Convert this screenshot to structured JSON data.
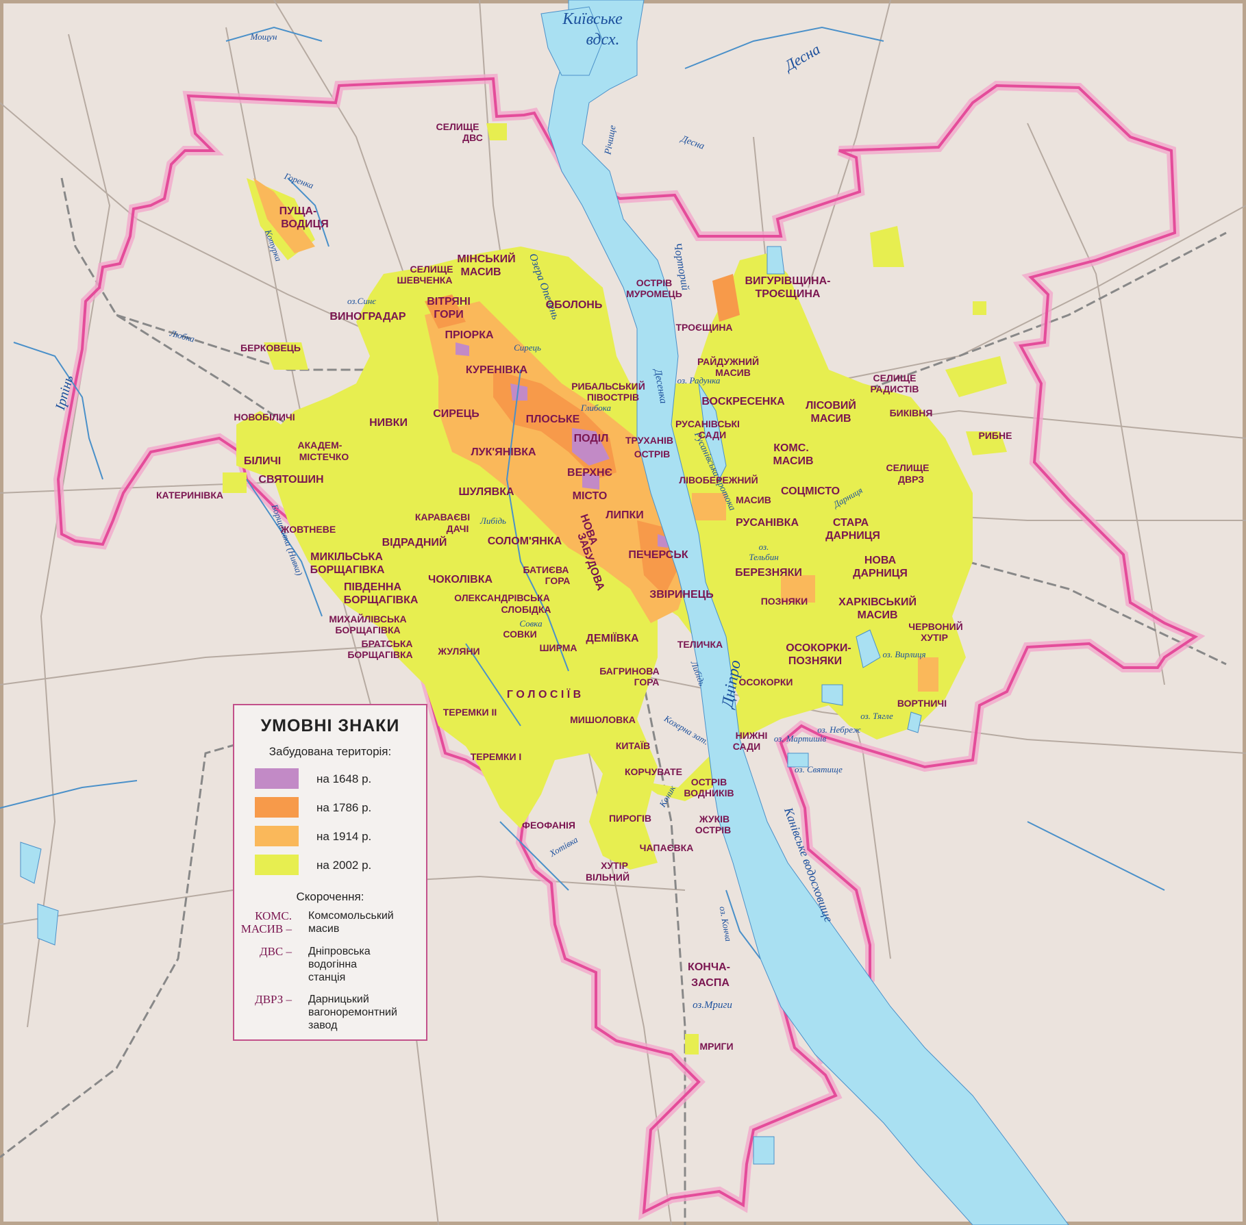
{
  "colors": {
    "background": "#ebe3dd",
    "water": "#a9e0f2",
    "river_line": "#4a90c9",
    "road": "#b6aaa1",
    "railway": "#7d7d7d",
    "boundary": "#e44c9a",
    "boundary_shadow": "#f2a8cc",
    "built_1648": "#c28ac6",
    "built_1786": "#f79a4a",
    "built_1914": "#fab85a",
    "built_2002": "#e7ee50",
    "district_text": "#7a1550",
    "water_text": "#1b4f9c"
  },
  "legend": {
    "title": "УМОВНІ ЗНАКИ",
    "subtitle": "Забудована територія:",
    "swatches": [
      {
        "label": "на 1648 р.",
        "color": "#c28ac6"
      },
      {
        "label": "на 1786 р.",
        "color": "#f79a4a"
      },
      {
        "label": "на 1914 р.",
        "color": "#fab85a"
      },
      {
        "label": "на 2002 р.",
        "color": "#e7ee50"
      }
    ],
    "abbr_title": "Скорочення:",
    "abbreviations": [
      {
        "key_line1": "КОМС.",
        "key_line2": "МАСИВ –",
        "line1": "Комсомольський",
        "line2": "масив",
        "line3": ""
      },
      {
        "key_line1": "ДВС –",
        "key_line2": "",
        "line1": "Дніпровська",
        "line2": "водогінна",
        "line3": "станція"
      },
      {
        "key_line1": "ДВРЗ –",
        "key_line2": "",
        "line1": "Дарницький",
        "line2": "вагоноремонтний",
        "line3": "завод"
      }
    ]
  },
  "water_labels": {
    "kyiv_reservoir_1": "Київське",
    "kyiv_reservoir_2": "вдсх.",
    "desna_upper": "Десна",
    "desna_mid": "Десна",
    "moshchun": "Мощун",
    "horenka": "Горенка",
    "koturka": "Котурка",
    "rychyshche": "Рiчище",
    "chortoryi": "Чорторий",
    "ozera_opechen": "Озера Опечень",
    "oz_syne": "оз.Синє",
    "lyubka": "Любка",
    "irpin": "Ірпінь",
    "syrets": "Сирець",
    "hlyboka": "Глибока",
    "desenka": "Десенка",
    "oz_radunka": "оз. Радунка",
    "rusanivska_protoka": "Русанівська протока",
    "darnytsia": "Дарниця",
    "borshchahivka_nyvka": "Борщагівка (Нивка)",
    "lybid_1": "Либідь",
    "lybid_2": "Либідь",
    "oz_telbyn_1": "оз.",
    "oz_telbyn_2": "Тельбин",
    "sovka": "Совка",
    "dnipro": "Дніпро",
    "oz_vyrlytsia": "оз. Вирлиця",
    "oz_tiahle": "оз. Тягле",
    "oz_nebrezh": "оз. Небреж",
    "oz_martyshiv": "оз. Мартишів",
    "oz_sviatyshche": "оз. Святище",
    "kozhukhivska_zat": "Козерна зат.",
    "konyk": "Коник",
    "khotivka": "Хотівка",
    "kanivske": "Канівське водосховище",
    "oz_koncha": "оз. Конча",
    "oz_myhy": "оз.Мриги"
  },
  "district_labels": {
    "selyshche_dvs_1": "СЕЛИЩЕ",
    "selyshche_dvs_2": "ДВС",
    "pushcha_1": "ПУЩА-",
    "pushcha_2": "ВОДИЦЯ",
    "selyshche_shevchenka_1": "СЕЛИЩЕ",
    "selyshche_shevchenka_2": "ШЕВЧЕНКА",
    "minskyi_1": "МІНСЬКИЙ",
    "minskyi_2": "МАСИВ",
    "obolon": "ОБОЛОНЬ",
    "ostriv_muromets_1": "ОСТРІВ",
    "ostriv_muromets_2": "МУРОМЕЦЬ",
    "vyhurivshchyna_1": "ВИГУРІВЩИНА-",
    "vyhurivshchyna_2": "ТРОЄЩИНА",
    "vynohradar": "ВИНОГРАДАР",
    "vitriani_1": "ВІТРЯНІ",
    "vitriani_2": "ГОРИ",
    "priorka": "ПРІОРКА",
    "troieshchyna": "ТРОЄЩИНА",
    "berkovets": "БЕРКОВЕЦЬ",
    "kurenivka": "КУРЕНІВКА",
    "raiduzhnyi_1": "РАЙДУЖНИЙ",
    "raiduzhnyi_2": "МАСИВ",
    "selyshche_radystiv_1": "СЕЛИЩЕ",
    "selyshche_radystiv_2": "РАДИСТІВ",
    "rybalskyi_1": "РИБАЛЬСЬКИЙ",
    "rybalskyi_2": "ПІВОСТРІВ",
    "voskresenka": "ВОСКРЕСЕНКА",
    "lisovyi_1": "ЛІСОВИЙ",
    "lisovyi_2": "МАСИВ",
    "bykivnia": "БИКІВНЯ",
    "novobilychi": "НОВОБІЛИЧІ",
    "nyvky": "НИВКИ",
    "syrets": "СИРЕЦЬ",
    "ploske": "ПЛОСЬКЕ",
    "rusanivski_1": "РУСАНІВСЬКІ",
    "rusanivski_2": "САДИ",
    "podil": "ПОДІЛ",
    "trukhaniv_1": "ТРУХАНІВ",
    "trukhaniv_2": "ОСТРІВ",
    "koms_1": "КОМС.",
    "koms_2": "МАСИВ",
    "rybne": "РИБНЕ",
    "akadem_1": "АКАДЕМ-",
    "akadem_2": "МІСТЕЧКО",
    "biliachi": "БІЛИЧІ",
    "lukianivka": "ЛУК'ЯНІВКА",
    "selyshche_dvrz_1": "СЕЛИЩЕ",
    "selyshche_dvrz_2": "ДВРЗ",
    "sviatoshyn": "СВЯТОШИН",
    "verkhnie_1": "ВЕРХНЄ",
    "verkhnie_2": "МІСТО",
    "livoberezhnyi_1": "ЛІВОБЕРЕЖНИЙ",
    "livoberezhnyi_2": "МАСИВ",
    "sotsmisto": "СОЦМІСТО",
    "katerynivka": "КАТЕРИНІВКА",
    "shuliavka": "ШУЛЯВКА",
    "stara_1": "СТАРА",
    "stara_2": "ДАРНИЦЯ",
    "karavaievi_1": "КАРАВАЄВІ",
    "karavaievi_2": "ДАЧІ",
    "lypky": "ЛИПКИ",
    "rusanivka": "РУСАНІВКА",
    "zhovtneve": "ЖОВТНЕВЕ",
    "vidradnyi": "ВІДРАДНИЙ",
    "solomianka": "СОЛОМ'ЯНКА",
    "nova_zabudova_1": "НОВА",
    "nova_zabudova_2": "ЗАБУДОВА",
    "pechersk": "ПЕЧЕРСЬК",
    "nova_darnytsia_1": "НОВА",
    "nova_darnytsia_2": "ДАРНИЦЯ",
    "mykilska_1": "МИКІЛЬСЬКА",
    "mykilska_2": "БОРЩАГІВКА",
    "berezniaky": "БЕРЕЗНЯКИ",
    "batyieva_1": "БАТИЄВА",
    "batyieva_2": "ГОРА",
    "pivdenna_1": "ПІВДЕННА",
    "pivdenna_2": "БОРЩАГІВКА",
    "chokolivka": "ЧОКОЛІВКА",
    "zvirynets": "ЗВІРИНЕЦЬ",
    "pozniaky": "ПОЗНЯКИ",
    "kharkivskyi_1": "ХАРКІВСЬКИЙ",
    "kharkivskyi_2": "МАСИВ",
    "oleksandrivska_1": "ОЛЕКСАНДРІВСЬКА",
    "oleksandrivska_2": "СЛОБІДКА",
    "mykhailivska_1": "МИХАЙЛІВСЬКА",
    "mykhailivska_2": "БОРЩАГІВКА",
    "sovky": "СОВКИ",
    "chervonyi_1": "ЧЕРВОНИЙ",
    "chervonyi_2": "ХУТІР",
    "demiivka": "ДЕМІЇВКА",
    "bratska_1": "БРАТСЬКА",
    "bratska_2": "БОРЩАГІВКА",
    "zhuliany": "ЖУЛЯНИ",
    "shyrma": "ШИРМА",
    "telychka": "ТЕЛИЧКА",
    "osokorky_pozniaky_1": "ОСОКОРКИ-",
    "osokorky_pozniaky_2": "ПОЗНЯКИ",
    "bahrynova_1": "БАГРИНОВА",
    "bahrynova_2": "ГОРА",
    "osokorky": "ОСОКОРКИ",
    "holosiiv": "Г О Л О С І Ї В",
    "vortnychi": "ВОРТНИЧІ",
    "teremky2": "ТЕРЕМКИ II",
    "myshelovka": "МИШОЛОВКА",
    "nyzhni_1": "НИЖНІ",
    "nyzhni_2": "САДИ",
    "kytaiv": "КИТАЇВ",
    "teremky1": "ТЕРЕМКИ I",
    "korchuvate": "КОРЧУВАТЕ",
    "ostriv_vodnykiv_1": "ОСТРІВ",
    "ostriv_vodnykiv_2": "ВОДНИКІВ",
    "pyrohiv": "ПИРОГІВ",
    "feofaniia": "ФЕОФАНІЯ",
    "zhukiv_1": "ЖУКІВ",
    "zhukiv_2": "ОСТРІВ",
    "chapaievka": "ЧАПАЄВКА",
    "khutir_1": "ХУТІР",
    "khutir_2": "ВІЛЬНИЙ",
    "koncha_1": "КОНЧА-",
    "koncha_2": "ЗАСПА",
    "myhy": "МРИГИ"
  }
}
